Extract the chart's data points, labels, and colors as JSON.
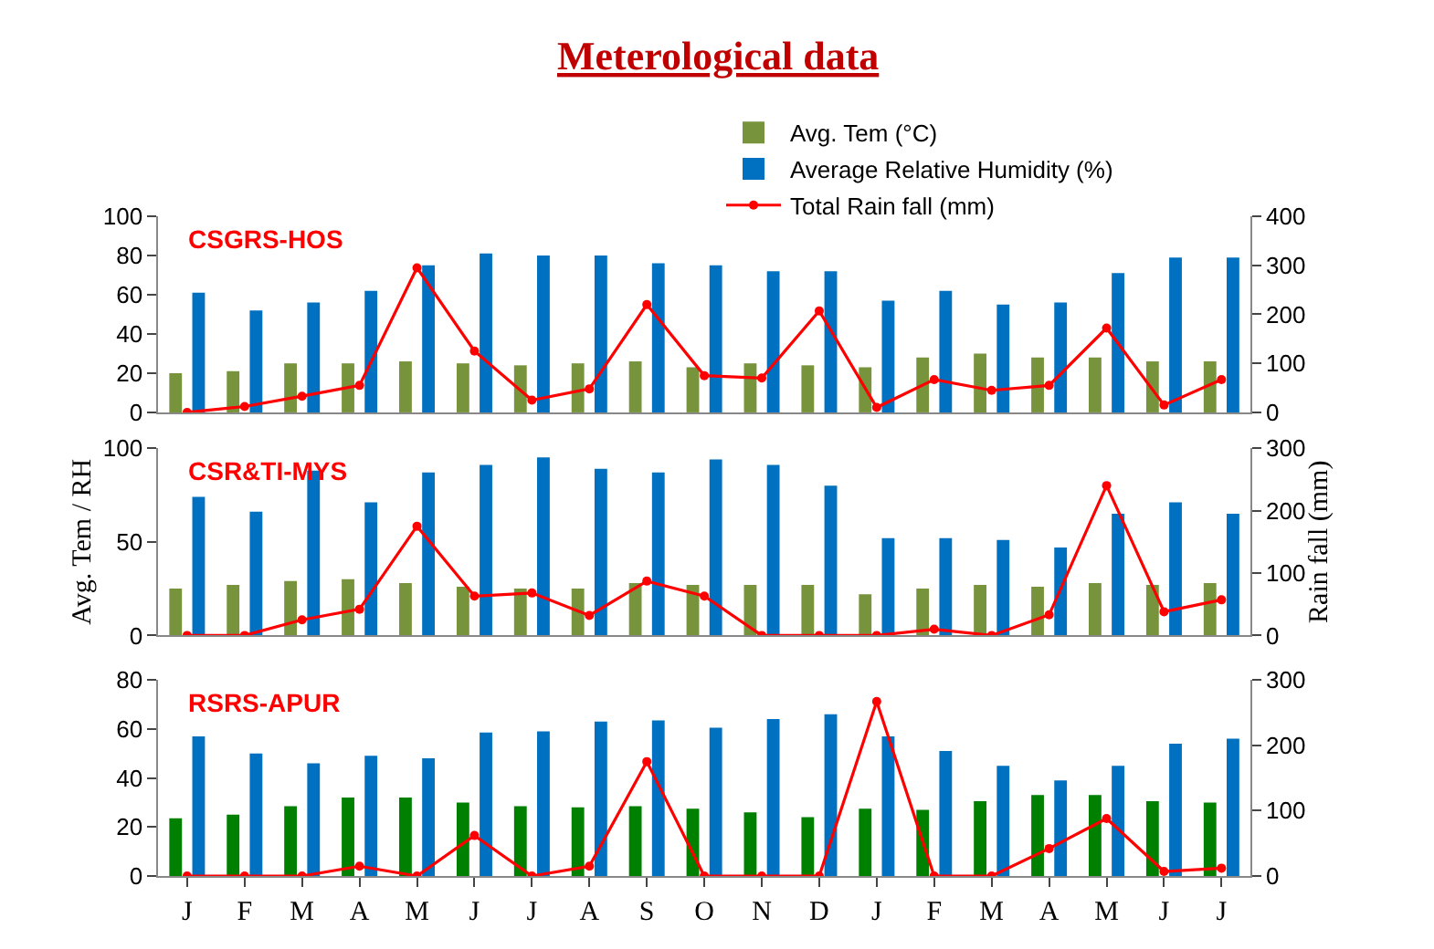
{
  "chart_data": [
    {
      "type": "bar",
      "title": "Meterological data",
      "annotations": [
        "CSGRS-HOS"
      ],
      "categories": [
        null,
        null,
        null,
        null,
        null,
        null,
        null,
        null,
        null,
        null,
        null,
        null,
        null,
        null,
        null,
        null,
        null,
        null,
        null
      ],
      "series": [
        {
          "name": "Avg. Tem (°C)",
          "color": "#77933c",
          "values": [
            20,
            21,
            25,
            25,
            26,
            25,
            24,
            25,
            26,
            23,
            25,
            24,
            23,
            28,
            30,
            28,
            28,
            26,
            26
          ]
        },
        {
          "name": "Average Relative Humidity (%)",
          "color": "#0070c0",
          "values": [
            61,
            52,
            56,
            62,
            75,
            81,
            80,
            80,
            76,
            75,
            72,
            72,
            57,
            62,
            55,
            56,
            71,
            79,
            79
          ]
        },
        {
          "name": "Total Rain fall (mm)",
          "type": "line",
          "axis": "y2",
          "color": "#ff0000",
          "values": [
            0,
            12,
            33,
            55,
            295,
            125,
            25,
            48,
            220,
            75,
            70,
            207,
            10,
            67,
            45,
            55,
            172,
            15,
            67
          ]
        }
      ],
      "ylim": [
        0,
        100
      ],
      "yticks": [
        0,
        20,
        40,
        60,
        80,
        100
      ],
      "y2lim": [
        0,
        400
      ],
      "y2ticks": [
        0,
        100,
        200,
        300,
        400
      ],
      "legend": "top",
      "marker": "circle",
      "line_style": "solid",
      "tick_labels": "y"
    },
    {
      "type": "bar",
      "annotations": [
        "CSR&TI-MYS"
      ],
      "ylabel": "Avg. Tem / RH",
      "y2label": "Rain fall (mm)",
      "categories": [
        null,
        null,
        null,
        null,
        null,
        null,
        null,
        null,
        null,
        null,
        null,
        null,
        null,
        null,
        null,
        null,
        null,
        null,
        null
      ],
      "series": [
        {
          "color": "#77933c",
          "values": [
            25,
            27,
            29,
            30,
            28,
            26,
            25,
            25,
            28,
            27,
            27,
            27,
            22,
            25,
            27,
            26,
            28,
            27,
            28
          ]
        },
        {
          "color": "#0070c0",
          "values": [
            74,
            66,
            88,
            71,
            87,
            91,
            95,
            89,
            87,
            94,
            91,
            80,
            52,
            52,
            51,
            47,
            65,
            71,
            65
          ]
        },
        {
          "type": "line",
          "axis": "y2",
          "color": "#ff0000",
          "values": [
            0,
            0,
            25,
            42,
            175,
            63,
            68,
            32,
            87,
            63,
            0,
            0,
            0,
            10,
            0,
            33,
            240,
            38,
            57
          ]
        }
      ],
      "ylim": [
        0,
        100
      ],
      "yticks": [
        0,
        50,
        100
      ],
      "y2lim": [
        0,
        300
      ],
      "y2ticks": [
        0,
        100,
        200,
        300
      ],
      "legend": false,
      "marker": "circle",
      "line_style": "solid",
      "tick_labels": "y"
    },
    {
      "type": "bar",
      "annotations": [
        "RSRS-APUR"
      ],
      "categories": [
        "J",
        "F",
        "M",
        "A",
        "M",
        "J",
        "J",
        "A",
        "S",
        "O",
        "N",
        "D",
        "J",
        "F",
        "M",
        "A",
        "M",
        "J",
        "J"
      ],
      "series": [
        {
          "color": "#008000",
          "values": [
            23.5,
            25,
            28.5,
            32,
            32,
            30,
            28.5,
            28,
            28.5,
            27.5,
            26,
            24,
            27.5,
            27,
            30.5,
            33,
            33,
            30.5,
            30
          ]
        },
        {
          "color": "#0070c0",
          "values": [
            57,
            50,
            46,
            49,
            48,
            58.5,
            59,
            63,
            63.5,
            60.5,
            64,
            66,
            57,
            51,
            45,
            39,
            45,
            54,
            56
          ]
        },
        {
          "type": "line",
          "axis": "y2",
          "color": "#ff0000",
          "values": [
            0,
            0,
            0,
            15,
            0,
            62,
            0,
            15,
            175,
            0,
            0,
            0,
            267,
            0,
            0,
            42,
            88,
            7,
            12
          ]
        }
      ],
      "ylim": [
        0,
        80
      ],
      "yticks": [
        0,
        20,
        40,
        60,
        80
      ],
      "y2lim": [
        0,
        300
      ],
      "y2ticks": [
        0,
        100,
        200,
        300
      ],
      "legend": false,
      "marker": "circle",
      "line_style": "solid"
    }
  ]
}
